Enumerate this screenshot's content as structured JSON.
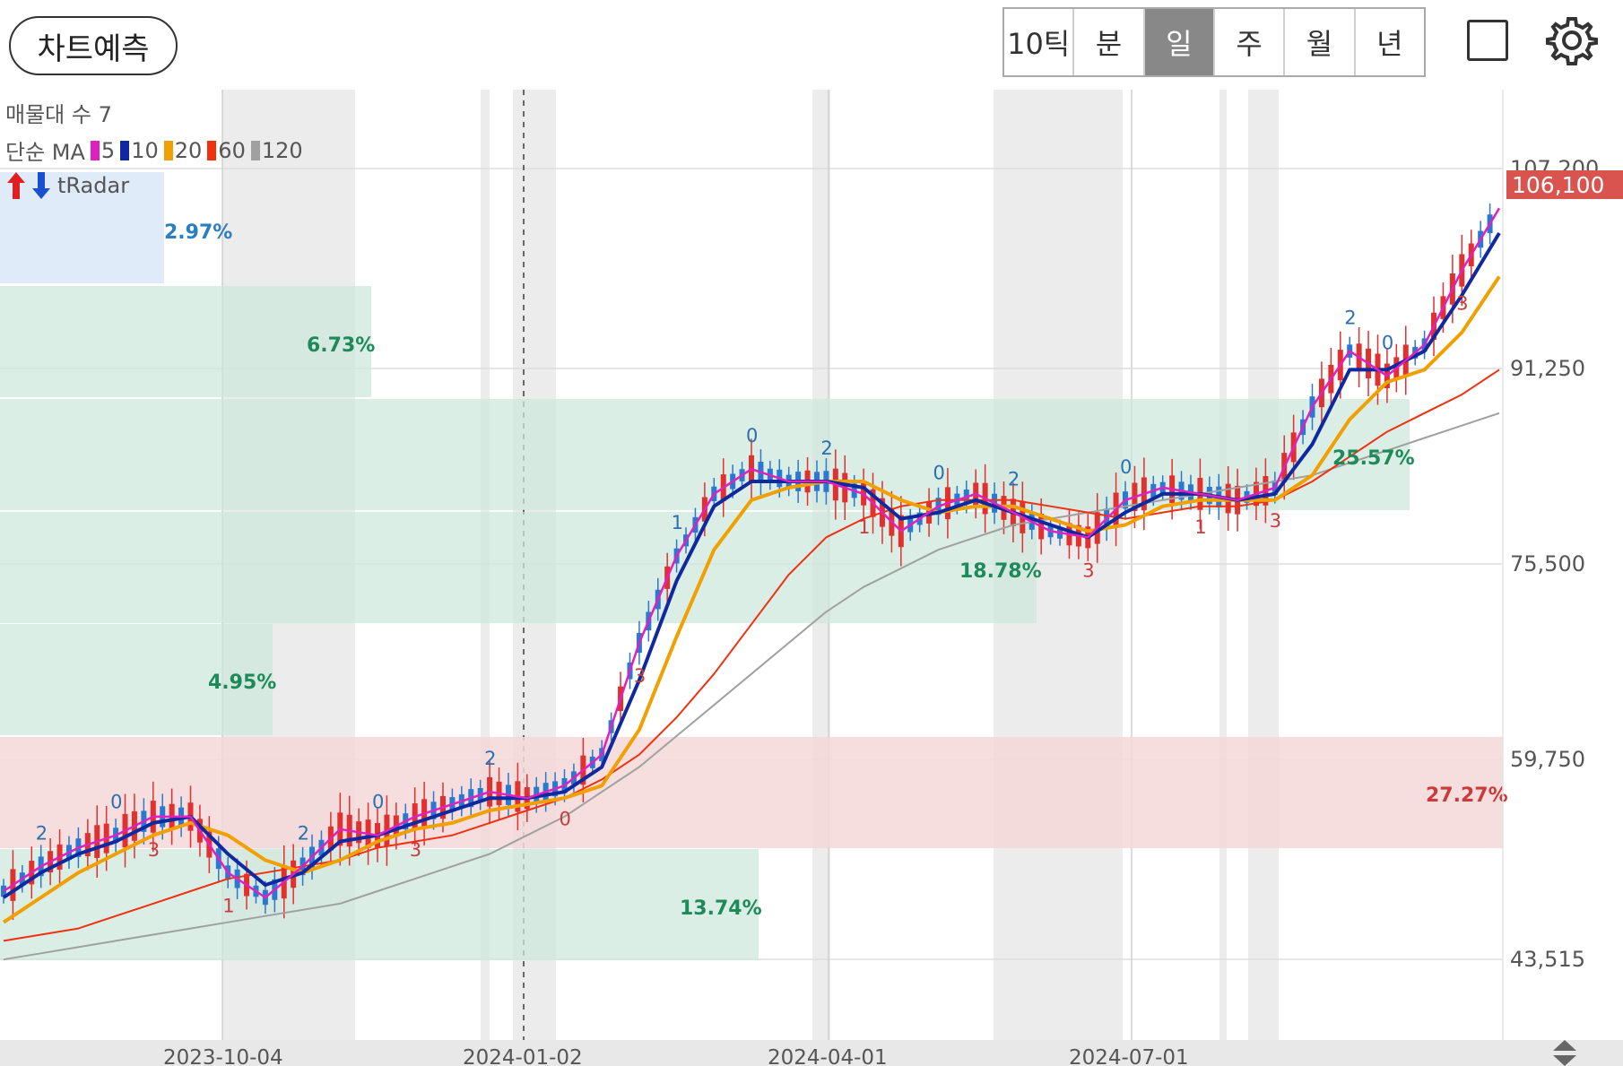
{
  "toolbar": {
    "predict_label": "차트예측",
    "periods": [
      {
        "label": "10틱",
        "active": false
      },
      {
        "label": "분",
        "active": false
      },
      {
        "label": "일",
        "active": true
      },
      {
        "label": "주",
        "active": false
      },
      {
        "label": "월",
        "active": false
      },
      {
        "label": "년",
        "active": false
      }
    ],
    "icons": [
      "square-icon",
      "gear-icon"
    ]
  },
  "legend": {
    "volume_profile": "매물대 수 7",
    "ma_prefix": "단순 MA",
    "ma_items": [
      {
        "label": "5",
        "color": "#e020c0"
      },
      {
        "label": "10",
        "color": "#1028a0"
      },
      {
        "label": "20",
        "color": "#f0a000"
      },
      {
        "label": "60",
        "color": "#f03010"
      },
      {
        "label": "120",
        "color": "#a0a0a0"
      }
    ],
    "radar_label": "tRadar"
  },
  "price_axis": {
    "ticks": [
      "107,200",
      "91,250",
      "75,500",
      "59,750",
      "43,515"
    ],
    "current_price": "106,100",
    "current_price_color": "#d9534f"
  },
  "date_axis": {
    "ticks": [
      "2023-10-04",
      "2024-01-02",
      "2024-04-01",
      "2024-07-01"
    ]
  },
  "volume_profile": [
    {
      "label": "2.97%",
      "value": 2.97,
      "color": "blue"
    },
    {
      "label": "6.73%",
      "value": 6.73,
      "color": "green"
    },
    {
      "label": "25.57%",
      "value": 25.57,
      "color": "green"
    },
    {
      "label": "18.78%",
      "value": 18.78,
      "color": "green"
    },
    {
      "label": "4.95%",
      "value": 4.95,
      "color": "green"
    },
    {
      "label": "27.27%",
      "value": 27.27,
      "color": "red"
    },
    {
      "label": "13.74%",
      "value": 13.74,
      "color": "green"
    }
  ],
  "chart_data": {
    "type": "line",
    "series": [
      {
        "name": "5",
        "values": [
          49000,
          51000,
          52500,
          53500,
          55000,
          55000,
          50500,
          48500,
          51000,
          54000,
          53500,
          55000,
          56000,
          57000,
          56500,
          57500,
          60000,
          69000,
          76000,
          81000,
          83000,
          82000,
          82000,
          81000,
          78000,
          80000,
          81000,
          79500,
          78000,
          77500,
          80500,
          81500,
          81000,
          80500,
          81500,
          88000,
          92500,
          90500,
          93000,
          99000,
          104000
        ]
      },
      {
        "name": "10",
        "values": [
          48500,
          50500,
          52000,
          53000,
          54500,
          55000,
          52000,
          49500,
          50500,
          53000,
          53500,
          54500,
          55500,
          56500,
          56500,
          57000,
          59000,
          66000,
          74000,
          80000,
          82000,
          82000,
          82000,
          81500,
          79000,
          79500,
          80500,
          79500,
          78500,
          77500,
          79500,
          81000,
          81000,
          80500,
          81000,
          85000,
          91000,
          91000,
          92500,
          97000,
          102000
        ]
      },
      {
        "name": "20",
        "values": [
          46500,
          48500,
          50500,
          52000,
          53500,
          54500,
          53500,
          51500,
          50500,
          51500,
          53000,
          54000,
          54500,
          55500,
          56000,
          56500,
          57500,
          62000,
          69500,
          76500,
          80500,
          81500,
          82000,
          82000,
          80500,
          79500,
          80000,
          80000,
          79000,
          78000,
          78500,
          80000,
          80500,
          80500,
          80500,
          82500,
          87000,
          90000,
          91000,
          94000,
          98500
        ]
      },
      {
        "name": "60",
        "values": [
          45000,
          45500,
          46000,
          47000,
          48000,
          49000,
          50000,
          50500,
          51000,
          51500,
          52500,
          53000,
          53500,
          54500,
          55500,
          56500,
          58000,
          60000,
          63000,
          66500,
          70500,
          74500,
          77500,
          79000,
          80000,
          80500,
          80500,
          80500,
          80000,
          79500,
          79000,
          79500,
          80000,
          80000,
          80500,
          82000,
          84000,
          86000,
          87500,
          89000,
          91000
        ]
      },
      {
        "name": "120",
        "values": [
          43500,
          44000,
          44500,
          45000,
          45500,
          46000,
          46500,
          47000,
          47500,
          48000,
          49000,
          50000,
          51000,
          52000,
          53500,
          55000,
          57000,
          59000,
          61500,
          64000,
          66500,
          69000,
          71500,
          73500,
          75000,
          76500,
          77500,
          78500,
          79000,
          79500,
          80000,
          80500,
          81000,
          81500,
          82000,
          82500,
          83500,
          84500,
          85500,
          86500,
          87500
        ]
      }
    ],
    "ylim": [
      43515,
      107200
    ],
    "yticks": [
      43515,
      59750,
      75500,
      91250,
      107200
    ],
    "xticks": [
      "2023-10-04",
      "2024-01-02",
      "2024-04-01",
      "2024-07-01"
    ],
    "grid": true,
    "annotations": [
      "2",
      "0",
      "3",
      "1",
      "2",
      "0",
      "3",
      "2",
      "0",
      "3",
      "1",
      "0",
      "2",
      "1",
      "0",
      "2",
      "3",
      "0",
      "1",
      "3",
      "2",
      "0",
      "3"
    ]
  }
}
